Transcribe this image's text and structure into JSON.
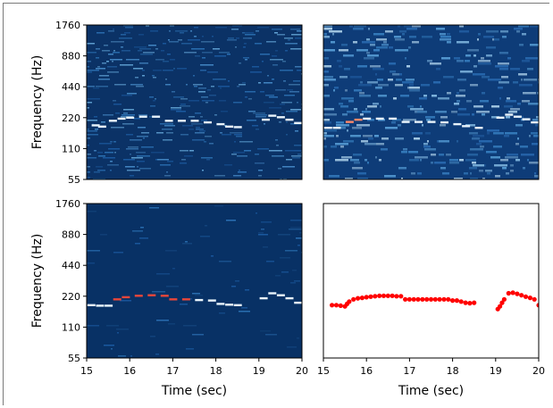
{
  "chart_data": [
    {
      "panel": "top-left",
      "type": "heatmap",
      "title": "",
      "xlabel": "",
      "ylabel": "Frequency (Hz)",
      "x_range": [
        15,
        20
      ],
      "y_scale": "log2",
      "y_ticks": [
        55,
        110,
        220,
        440,
        880,
        1760
      ],
      "y_tick_labels": [
        "55",
        "110",
        "220",
        "440",
        "880",
        "1760"
      ],
      "x_ticks_visible": false,
      "colormap": "dark-blue-to-red",
      "melody_trace": {
        "x": [
          15.2,
          15.35,
          15.6,
          15.8,
          16.0,
          16.3,
          16.6,
          16.9,
          17.2,
          17.5,
          17.8,
          18.1,
          18.3,
          18.5,
          19.15,
          19.3,
          19.5,
          19.7,
          19.9
        ],
        "y": [
          185,
          180,
          205,
          215,
          220,
          225,
          225,
          205,
          205,
          205,
          198,
          190,
          180,
          178,
          210,
          230,
          222,
          210,
          195
        ]
      }
    },
    {
      "panel": "top-right",
      "type": "heatmap",
      "title": "",
      "xlabel": "",
      "ylabel": "",
      "x_range": [
        15,
        20
      ],
      "y_scale": "log2",
      "y_ticks_visible": false,
      "x_ticks_visible": false,
      "colormap": "dark-blue-to-red",
      "melody_trace": {
        "x": [
          15.1,
          15.3,
          15.6,
          15.8,
          16.0,
          16.3,
          16.6,
          16.9,
          17.2,
          17.5,
          17.8,
          18.1,
          18.3,
          18.6,
          19.1,
          19.3,
          19.5,
          19.7,
          19.9
        ],
        "y": [
          175,
          175,
          200,
          210,
          215,
          215,
          215,
          200,
          200,
          200,
          198,
          190,
          182,
          175,
          220,
          235,
          225,
          212,
          198
        ]
      }
    },
    {
      "panel": "bottom-left",
      "type": "heatmap",
      "title": "",
      "xlabel": "Time (sec)",
      "ylabel": "Frequency (Hz)",
      "x_range": [
        15,
        20
      ],
      "x_ticks": [
        15,
        16,
        17,
        18,
        19,
        20
      ],
      "x_tick_labels": [
        "15",
        "16",
        "17",
        "18",
        "19",
        "20"
      ],
      "y_scale": "log2",
      "y_ticks": [
        55,
        110,
        220,
        440,
        880,
        1760
      ],
      "y_tick_labels": [
        "55",
        "110",
        "220",
        "440",
        "880",
        "1760"
      ],
      "colormap": "dark-blue-to-red",
      "melody_trace": {
        "x": [
          15.1,
          15.3,
          15.5,
          15.7,
          15.9,
          16.2,
          16.5,
          16.8,
          17.0,
          17.3,
          17.6,
          17.9,
          18.1,
          18.3,
          18.5,
          19.1,
          19.3,
          19.5,
          19.7,
          19.9
        ],
        "y": [
          180,
          178,
          178,
          205,
          215,
          222,
          225,
          222,
          205,
          205,
          202,
          200,
          185,
          182,
          180,
          210,
          235,
          225,
          210,
          190
        ]
      }
    },
    {
      "panel": "bottom-right",
      "type": "scatter",
      "title": "",
      "xlabel": "Time (sec)",
      "ylabel": "",
      "x_range": [
        15,
        20
      ],
      "x_ticks": [
        15,
        16,
        17,
        18,
        19,
        20
      ],
      "x_tick_labels": [
        "15",
        "16",
        "17",
        "18",
        "19",
        "20"
      ],
      "y_scale": "log2",
      "y_range": [
        55,
        1760
      ],
      "y_ticks_visible": false,
      "marker_color": "#ff0000",
      "x": [
        15.2,
        15.3,
        15.4,
        15.5,
        15.55,
        15.6,
        15.7,
        15.8,
        15.9,
        16.0,
        16.1,
        16.2,
        16.3,
        16.4,
        16.5,
        16.6,
        16.7,
        16.8,
        16.9,
        17.0,
        17.1,
        17.2,
        17.3,
        17.4,
        17.5,
        17.6,
        17.7,
        17.8,
        17.9,
        18.0,
        18.1,
        18.2,
        18.3,
        18.4,
        18.5,
        19.05,
        19.1,
        19.15,
        19.2,
        19.3,
        19.4,
        19.5,
        19.6,
        19.7,
        19.8,
        19.9,
        20.0
      ],
      "y": [
        180,
        180,
        178,
        175,
        185,
        195,
        205,
        210,
        212,
        215,
        218,
        220,
        222,
        222,
        222,
        222,
        220,
        220,
        205,
        205,
        205,
        205,
        205,
        205,
        205,
        205,
        205,
        205,
        205,
        200,
        200,
        195,
        190,
        188,
        190,
        165,
        175,
        190,
        205,
        235,
        238,
        232,
        225,
        218,
        212,
        205,
        180
      ]
    }
  ]
}
